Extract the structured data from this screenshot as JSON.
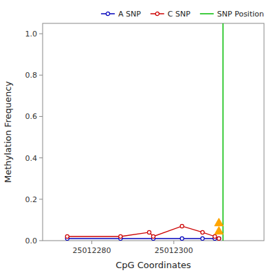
{
  "chart_data": {
    "type": "line",
    "xlabel": "CpG Coordinates",
    "ylabel": "Methylation Frequency",
    "xlim": [
      25012268,
      25012322
    ],
    "ylim": [
      0.0,
      1.05
    ],
    "xticks": [
      25012280,
      25012300
    ],
    "yticks": [
      {
        "value": 0.0,
        "label": "0.0"
      },
      0.2,
      0.4,
      0.6,
      0.8,
      {
        "value": 1.0,
        "label": "1.0"
      }
    ],
    "grid": false,
    "legend": "upper right",
    "series": [
      {
        "name": "A SNP",
        "color": "#0000bb",
        "marker": "circle",
        "line_style": "solid",
        "x": [
          25012274,
          25012287,
          25012295,
          25012302,
          25012307,
          25012310,
          25012311
        ],
        "values": [
          0.01,
          0.01,
          0.01,
          0.01,
          0.01,
          0.01,
          0.01
        ]
      },
      {
        "name": "C SNP",
        "color": "#cc0000",
        "marker": "circle",
        "line_style": "solid",
        "x": [
          25012274,
          25012287,
          25012294,
          25012295,
          25012302,
          25012307,
          25012310,
          25012311
        ],
        "values": [
          0.02,
          0.02,
          0.04,
          0.02,
          0.07,
          0.04,
          0.02,
          0.01
        ]
      },
      {
        "name": "SNP Position",
        "type": "vline",
        "color": "#00bb00",
        "line_style": "solid",
        "x": [
          25012312
        ]
      },
      {
        "type": "scatter",
        "marker": "triangle",
        "color": "#FFA500",
        "x": [
          25012311,
          25012311
        ],
        "values": [
          0.085,
          0.045
        ]
      }
    ]
  }
}
